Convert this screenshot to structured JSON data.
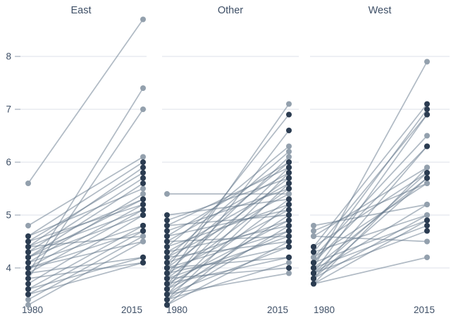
{
  "chart_data": {
    "type": "line",
    "subtype": "faceted-slopegraph",
    "title": "",
    "xlabel": "",
    "ylabel": "",
    "x_categories": [
      "1980",
      "2015"
    ],
    "y_ticks": [
      8,
      7,
      6,
      5,
      4
    ],
    "ylim": [
      3.2,
      8.8
    ],
    "grid": "horizontal",
    "legend": "none",
    "line_format": [
      "value_1980",
      "value_2015",
      "point_tone"
    ],
    "facets": [
      {
        "title": "East",
        "lines": [
          [
            5.6,
            8.7,
            "light"
          ],
          [
            3.9,
            7.4,
            "light"
          ],
          [
            3.8,
            7.0,
            "light"
          ],
          [
            4.8,
            6.1,
            "light"
          ],
          [
            4.6,
            6.0,
            "dark"
          ],
          [
            4.4,
            5.9,
            "dark"
          ],
          [
            4.5,
            5.8,
            "dark"
          ],
          [
            4.3,
            5.7,
            "dark"
          ],
          [
            4.2,
            5.6,
            "dark"
          ],
          [
            4.6,
            5.5,
            "light"
          ],
          [
            4.1,
            5.4,
            "light"
          ],
          [
            4.4,
            5.3,
            "dark"
          ],
          [
            4.2,
            5.3,
            "dark"
          ],
          [
            4.5,
            5.2,
            "dark"
          ],
          [
            4.0,
            5.2,
            "dark"
          ],
          [
            4.3,
            5.1,
            "dark"
          ],
          [
            3.9,
            5.1,
            "dark"
          ],
          [
            4.2,
            5.0,
            "dark"
          ],
          [
            3.7,
            5.0,
            "dark"
          ],
          [
            4.1,
            4.8,
            "dark"
          ],
          [
            3.6,
            4.8,
            "dark"
          ],
          [
            4.0,
            4.7,
            "dark"
          ],
          [
            3.5,
            4.7,
            "dark"
          ],
          [
            4.4,
            4.6,
            "light"
          ],
          [
            3.4,
            4.6,
            "light"
          ],
          [
            4.0,
            4.5,
            "light"
          ],
          [
            3.3,
            4.5,
            "light"
          ],
          [
            3.9,
            4.2,
            "dark"
          ],
          [
            3.6,
            4.2,
            "dark"
          ],
          [
            3.8,
            4.1,
            "dark"
          ],
          [
            3.5,
            4.1,
            "dark"
          ]
        ]
      },
      {
        "title": "Other",
        "lines": [
          [
            5.4,
            5.4,
            "light"
          ],
          [
            3.8,
            7.1,
            "light"
          ],
          [
            4.0,
            6.9,
            "dark"
          ],
          [
            3.6,
            6.6,
            "dark"
          ],
          [
            4.4,
            6.3,
            "light"
          ],
          [
            4.2,
            6.2,
            "light"
          ],
          [
            3.9,
            6.1,
            "light"
          ],
          [
            4.6,
            6.0,
            "dark"
          ],
          [
            4.1,
            6.0,
            "dark"
          ],
          [
            4.8,
            5.9,
            "dark"
          ],
          [
            3.7,
            5.9,
            "dark"
          ],
          [
            4.5,
            5.8,
            "dark"
          ],
          [
            3.5,
            5.8,
            "dark"
          ],
          [
            4.9,
            5.7,
            "dark"
          ],
          [
            4.0,
            5.7,
            "dark"
          ],
          [
            4.3,
            5.6,
            "dark"
          ],
          [
            3.4,
            5.6,
            "dark"
          ],
          [
            4.7,
            5.5,
            "dark"
          ],
          [
            3.8,
            5.5,
            "dark"
          ],
          [
            4.2,
            5.4,
            "light"
          ],
          [
            5.0,
            5.3,
            "dark"
          ],
          [
            3.6,
            5.3,
            "dark"
          ],
          [
            4.4,
            5.2,
            "dark"
          ],
          [
            3.3,
            5.2,
            "dark"
          ],
          [
            4.6,
            5.1,
            "dark"
          ],
          [
            3.9,
            5.1,
            "dark"
          ],
          [
            4.8,
            5.0,
            "dark"
          ],
          [
            3.5,
            5.0,
            "dark"
          ],
          [
            4.1,
            4.9,
            "dark"
          ],
          [
            3.7,
            4.9,
            "dark"
          ],
          [
            4.3,
            4.8,
            "dark"
          ],
          [
            3.4,
            4.8,
            "dark"
          ],
          [
            4.0,
            4.7,
            "dark"
          ],
          [
            3.6,
            4.7,
            "dark"
          ],
          [
            4.5,
            4.6,
            "dark"
          ],
          [
            3.8,
            4.6,
            "dark"
          ],
          [
            4.2,
            4.5,
            "dark"
          ],
          [
            3.3,
            4.5,
            "dark"
          ],
          [
            3.9,
            4.4,
            "dark"
          ],
          [
            3.5,
            4.4,
            "dark"
          ],
          [
            4.0,
            4.2,
            "dark"
          ],
          [
            3.7,
            4.2,
            "dark"
          ],
          [
            3.4,
            4.1,
            "light"
          ],
          [
            3.8,
            4.0,
            "dark"
          ],
          [
            3.5,
            3.9,
            "light"
          ]
        ]
      },
      {
        "title": "West",
        "lines": [
          [
            4.0,
            7.9,
            "light"
          ],
          [
            4.4,
            7.1,
            "dark"
          ],
          [
            4.1,
            7.0,
            "dark"
          ],
          [
            4.3,
            6.9,
            "dark"
          ],
          [
            3.9,
            6.9,
            "dark"
          ],
          [
            4.2,
            6.5,
            "light"
          ],
          [
            4.1,
            6.3,
            "dark"
          ],
          [
            3.8,
            6.3,
            "dark"
          ],
          [
            4.6,
            5.9,
            "light"
          ],
          [
            3.7,
            5.9,
            "light"
          ],
          [
            4.4,
            5.8,
            "dark"
          ],
          [
            3.9,
            5.8,
            "dark"
          ],
          [
            4.0,
            5.7,
            "dark"
          ],
          [
            3.8,
            5.7,
            "dark"
          ],
          [
            4.7,
            5.6,
            "light"
          ],
          [
            4.2,
            5.6,
            "light"
          ],
          [
            4.8,
            5.2,
            "light"
          ],
          [
            3.9,
            5.2,
            "light"
          ],
          [
            4.3,
            5.0,
            "light"
          ],
          [
            3.8,
            5.0,
            "light"
          ],
          [
            4.1,
            4.9,
            "dark"
          ],
          [
            3.7,
            4.9,
            "dark"
          ],
          [
            4.0,
            4.8,
            "dark"
          ],
          [
            3.9,
            4.7,
            "dark"
          ],
          [
            4.6,
            4.5,
            "light"
          ],
          [
            3.7,
            4.2,
            "light"
          ]
        ]
      }
    ],
    "colors": {
      "dark_point": "#2b3c51",
      "light_point": "#93a0ad",
      "line": "#617589",
      "gridline": "#e3e8ee",
      "tick_mark": "#aeb6c2",
      "label_text": "#3e4f66"
    }
  }
}
